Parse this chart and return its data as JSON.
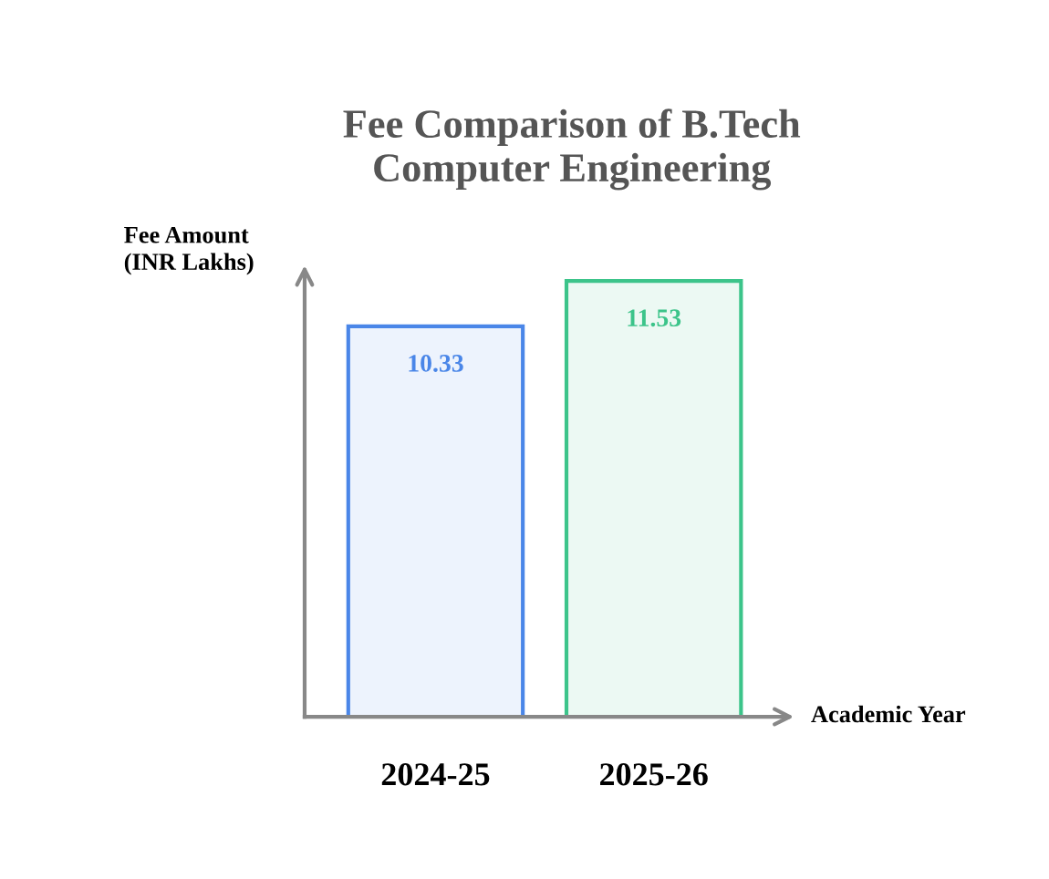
{
  "chart_data": {
    "type": "bar",
    "title": "Fee Comparison of B.Tech\nComputer Engineering",
    "xlabel": "Academic Year",
    "ylabel": "Fee Amount\n(INR Lakhs)",
    "categories": [
      "2024-25",
      "2025-26"
    ],
    "values": [
      10.33,
      11.53
    ],
    "colors": [
      "#4a86e8",
      "#3cc48a"
    ],
    "data_labels": true,
    "grid": false,
    "legend": false
  }
}
